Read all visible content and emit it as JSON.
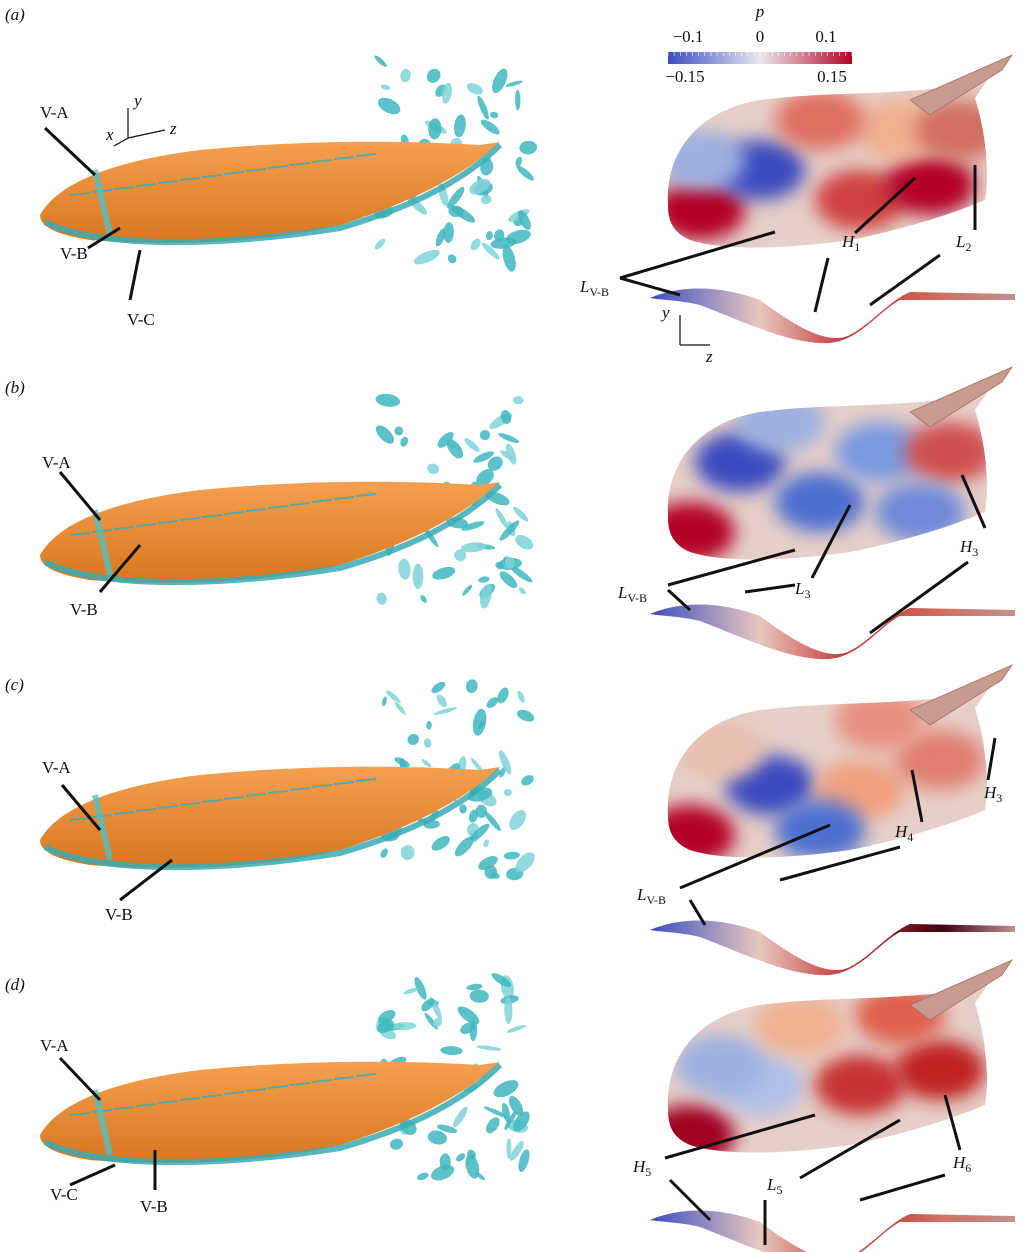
{
  "panels": [
    {
      "tag": "(a)",
      "left_labels": [
        "V-A",
        "V-B",
        "V-C"
      ],
      "axes": [
        "x",
        "y",
        "z"
      ],
      "right_labels": [
        {
          "main": "H",
          "sub": "1"
        },
        {
          "main": "L",
          "sub": "2"
        },
        {
          "main": "L",
          "sub": "V-B"
        }
      ],
      "side_axes": [
        "y",
        "z"
      ]
    },
    {
      "tag": "(b)",
      "left_labels": [
        "V-A",
        "V-B"
      ],
      "right_labels": [
        {
          "main": "L",
          "sub": "V-B"
        },
        {
          "main": "L",
          "sub": "3"
        },
        {
          "main": "H",
          "sub": "3"
        }
      ]
    },
    {
      "tag": "(c)",
      "left_labels": [
        "V-A",
        "V-B"
      ],
      "right_labels": [
        {
          "main": "H",
          "sub": "3"
        },
        {
          "main": "H",
          "sub": "4"
        },
        {
          "main": "L",
          "sub": "V-B"
        }
      ]
    },
    {
      "tag": "(d)",
      "left_labels": [
        "V-A",
        "V-C",
        "V-B"
      ],
      "right_labels": [
        {
          "main": "H",
          "sub": "5"
        },
        {
          "main": "L",
          "sub": "5"
        },
        {
          "main": "H",
          "sub": "6"
        }
      ]
    }
  ],
  "colorbar": {
    "title": "p",
    "ticks_top": [
      "−0.1",
      "0",
      "0.1"
    ],
    "ticks_bottom": [
      "−0.15",
      "0.15"
    ]
  }
}
